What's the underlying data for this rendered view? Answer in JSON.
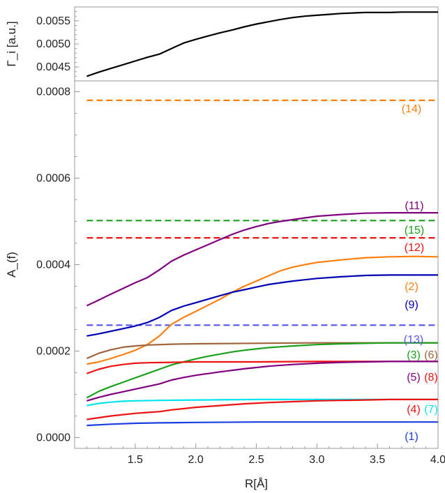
{
  "chart_data": [
    {
      "type": "line",
      "ylabel": "Γ_i [a.u.]",
      "xlim": [
        1.0,
        4.0
      ],
      "ylim": [
        0.0042,
        0.0058
      ],
      "yticks": [
        0.0045,
        0.005,
        0.0055
      ],
      "ytick_labels": [
        "0.0045",
        "0.0050",
        "0.0055"
      ],
      "series": [
        {
          "color": "#000000",
          "dashed": false,
          "x": [
            1.1,
            1.2,
            1.3,
            1.4,
            1.5,
            1.6,
            1.7,
            1.8,
            1.9,
            2.0,
            2.1,
            2.2,
            2.3,
            2.4,
            2.5,
            2.6,
            2.7,
            2.8,
            2.9,
            3.0,
            3.1,
            3.2,
            3.3,
            3.4,
            3.5,
            3.6,
            3.7,
            3.8,
            3.9,
            4.0
          ],
          "y": [
            0.0043,
            0.00439,
            0.00447,
            0.00455,
            0.00463,
            0.00471,
            0.00478,
            0.0049,
            0.00502,
            0.0051,
            0.00517,
            0.00524,
            0.0053,
            0.00537,
            0.00543,
            0.00548,
            0.00553,
            0.00557,
            0.0056,
            0.00562,
            0.00564,
            0.00566,
            0.00567,
            0.00568,
            0.00568,
            0.00568,
            0.00569,
            0.00569,
            0.00569,
            0.00569
          ]
        }
      ]
    },
    {
      "type": "line",
      "xlabel": "R[Å]",
      "ylabel": "A_(f)",
      "xlim": [
        1.0,
        4.0
      ],
      "ylim": [
        -2.5e-05,
        0.000825
      ],
      "xticks": [
        1.5,
        2.0,
        2.5,
        3.0,
        3.5,
        4.0
      ],
      "xtick_labels": [
        "1.5",
        "2.0",
        "2.5",
        "3.0",
        "3.5",
        "4.0"
      ],
      "yticks": [
        0.0,
        0.0002,
        0.0004,
        0.0006,
        0.0008
      ],
      "ytick_labels": [
        "0.0000",
        "0.0002",
        "0.0004",
        "0.0006",
        "0.0008"
      ],
      "series": [
        {
          "name": "(14)",
          "color": "#ff7f0e",
          "dashed": true,
          "x": [
            1.1,
            4.0
          ],
          "y": [
            0.00078,
            0.00078
          ]
        },
        {
          "name": "(15)",
          "color": "#1aa01a",
          "dashed": true,
          "x": [
            1.1,
            4.0
          ],
          "y": [
            0.000502,
            0.000502
          ]
        },
        {
          "name": "(12)",
          "color": "#ee1111",
          "dashed": true,
          "x": [
            1.1,
            4.0
          ],
          "y": [
            0.000462,
            0.000462
          ]
        },
        {
          "name": "(13)",
          "color": "#5555ee",
          "dashed": true,
          "x": [
            1.1,
            4.0
          ],
          "y": [
            0.00026,
            0.00026
          ]
        },
        {
          "name": "(11)",
          "color": "#800080",
          "dashed": false,
          "x": [
            1.1,
            1.2,
            1.3,
            1.4,
            1.5,
            1.6,
            1.7,
            1.8,
            1.9,
            2.0,
            2.1,
            2.2,
            2.3,
            2.4,
            2.5,
            2.6,
            2.7,
            2.8,
            2.9,
            3.0,
            3.2,
            3.4,
            3.6,
            3.8,
            4.0
          ],
          "y": [
            0.000305,
            0.000318,
            0.000332,
            0.000345,
            0.000358,
            0.00037,
            0.000388,
            0.000408,
            0.000422,
            0.000434,
            0.000446,
            0.000458,
            0.00047,
            0.00048,
            0.000488,
            0.000495,
            0.0005,
            0.000504,
            0.000508,
            0.000512,
            0.000516,
            0.000519,
            0.00052,
            0.00052,
            0.00052
          ]
        },
        {
          "name": "(2)",
          "color": "#ff7f0e",
          "dashed": false,
          "x": [
            1.1,
            1.2,
            1.3,
            1.4,
            1.5,
            1.6,
            1.7,
            1.8,
            1.9,
            2.0,
            2.1,
            2.2,
            2.3,
            2.4,
            2.5,
            2.6,
            2.7,
            2.8,
            2.9,
            3.0,
            3.2,
            3.4,
            3.6,
            3.8,
            4.0
          ],
          "y": [
            0.00017,
            0.000175,
            0.000183,
            0.000192,
            0.000202,
            0.000215,
            0.000235,
            0.000262,
            0.000278,
            0.000292,
            0.000306,
            0.00032,
            0.000336,
            0.00035,
            0.000362,
            0.000374,
            0.000386,
            0.000394,
            0.0004,
            0.000405,
            0.000411,
            0.000416,
            0.000418,
            0.000419,
            0.000418
          ]
        },
        {
          "name": "(9)",
          "color": "#0000b3",
          "dashed": false,
          "x": [
            1.1,
            1.2,
            1.3,
            1.4,
            1.5,
            1.6,
            1.7,
            1.8,
            1.9,
            2.0,
            2.1,
            2.2,
            2.3,
            2.4,
            2.5,
            2.6,
            2.7,
            2.8,
            2.9,
            3.0,
            3.2,
            3.4,
            3.6,
            3.8,
            4.0
          ],
          "y": [
            0.000235,
            0.00024,
            0.000246,
            0.000252,
            0.000258,
            0.000266,
            0.000278,
            0.000294,
            0.000304,
            0.000312,
            0.00032,
            0.000328,
            0.000336,
            0.000342,
            0.000348,
            0.000354,
            0.000358,
            0.000362,
            0.000365,
            0.000368,
            0.000372,
            0.000375,
            0.000376,
            0.000376,
            0.000376
          ]
        },
        {
          "name": "(6)",
          "color": "#a0643c",
          "dashed": false,
          "x": [
            1.1,
            1.2,
            1.3,
            1.4,
            1.5,
            1.6,
            1.8,
            2.0,
            2.5,
            3.0,
            3.5,
            4.0
          ],
          "y": [
            0.000183,
            0.000195,
            0.000203,
            0.000209,
            0.000212,
            0.000214,
            0.000216,
            0.000217,
            0.000218,
            0.000219,
            0.000219,
            0.000219
          ]
        },
        {
          "name": "(3)",
          "color": "#1aa01a",
          "dashed": false,
          "x": [
            1.1,
            1.2,
            1.3,
            1.4,
            1.5,
            1.6,
            1.7,
            1.8,
            1.9,
            2.0,
            2.1,
            2.2,
            2.3,
            2.4,
            2.5,
            2.6,
            2.7,
            2.8,
            3.0,
            3.2,
            3.4,
            3.6,
            3.8,
            4.0
          ],
          "y": [
            9.2e-05,
            0.000107,
            0.000118,
            0.000128,
            0.000138,
            0.000148,
            0.000158,
            0.000168,
            0.000175,
            0.000182,
            0.000188,
            0.000193,
            0.000198,
            0.000202,
            0.000205,
            0.000208,
            0.00021,
            0.000212,
            0.000215,
            0.000217,
            0.000218,
            0.000219,
            0.000219,
            0.000219
          ]
        },
        {
          "name": "(8)",
          "color": "#ee1111",
          "dashed": false,
          "x": [
            1.1,
            1.2,
            1.3,
            1.4,
            1.5,
            1.6,
            1.8,
            2.0,
            2.5,
            3.0,
            3.5,
            4.0
          ],
          "y": [
            0.000148,
            0.000158,
            0.000165,
            0.000169,
            0.000172,
            0.000173,
            0.000174,
            0.000175,
            0.000175,
            0.000176,
            0.000176,
            0.000176
          ]
        },
        {
          "name": "(5)",
          "color": "#800080",
          "dashed": false,
          "x": [
            1.1,
            1.2,
            1.3,
            1.4,
            1.5,
            1.6,
            1.7,
            1.8,
            1.9,
            2.0,
            2.2,
            2.4,
            2.6,
            2.8,
            3.0,
            3.2,
            3.4,
            3.6,
            3.8,
            4.0
          ],
          "y": [
            8.5e-05,
            9.3e-05,
            0.0001,
            0.000106,
            0.000112,
            0.000118,
            0.000124,
            0.000133,
            0.000139,
            0.000144,
            0.000152,
            0.000159,
            0.000165,
            0.000169,
            0.000172,
            0.000174,
            0.000175,
            0.000176,
            0.000176,
            0.000176
          ]
        },
        {
          "name": "(7)",
          "color": "#00e5ee",
          "dashed": false,
          "x": [
            1.1,
            1.2,
            1.3,
            1.4,
            1.5,
            1.7,
            2.0,
            2.5,
            3.0,
            3.5,
            4.0
          ],
          "y": [
            7.4e-05,
            7.9e-05,
            8.2e-05,
            8.4e-05,
            8.5e-05,
            8.6e-05,
            8.7e-05,
            8.8e-05,
            8.8e-05,
            8.8e-05,
            8.8e-05
          ]
        },
        {
          "name": "(4)",
          "color": "#ee1111",
          "dashed": false,
          "x": [
            1.1,
            1.2,
            1.3,
            1.4,
            1.5,
            1.6,
            1.7,
            1.8,
            1.9,
            2.0,
            2.2,
            2.4,
            2.6,
            2.8,
            3.0,
            3.2,
            3.4,
            3.6,
            3.8,
            4.0
          ],
          "y": [
            4.2e-05,
            4.6e-05,
            5e-05,
            5.3e-05,
            5.6e-05,
            5.8e-05,
            6e-05,
            6.4e-05,
            6.7e-05,
            7e-05,
            7.4e-05,
            7.8e-05,
            8.1e-05,
            8.3e-05,
            8.5e-05,
            8.6e-05,
            8.7e-05,
            8.8e-05,
            8.8e-05,
            8.8e-05
          ]
        },
        {
          "name": "(1)",
          "color": "#1a3fe0",
          "dashed": false,
          "x": [
            1.1,
            1.3,
            1.5,
            1.7,
            2.0,
            2.5,
            3.0,
            3.5,
            4.0
          ],
          "y": [
            2.8e-05,
            3.1e-05,
            3.3e-05,
            3.4e-05,
            3.5e-05,
            3.6e-05,
            3.6e-05,
            3.6e-05,
            3.6e-05
          ]
        }
      ]
    }
  ]
}
